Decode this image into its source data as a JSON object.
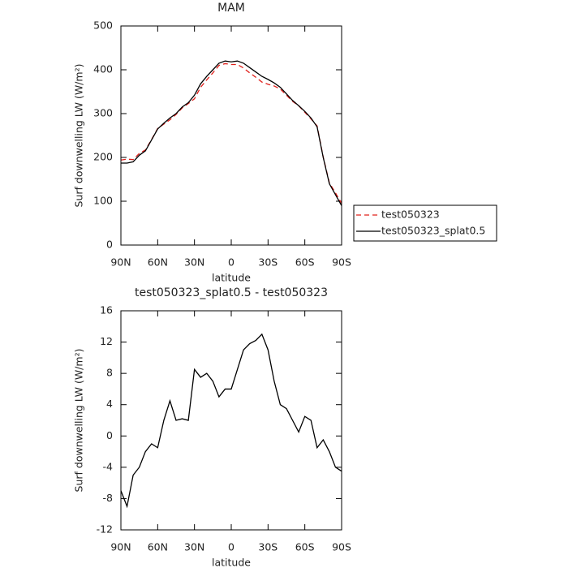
{
  "chart_data": [
    {
      "type": "line",
      "title": "MAM",
      "xlabel": "latitude",
      "ylabel": "Surf downwelling LW (W/m²)",
      "x": [
        90,
        85,
        80,
        75,
        70,
        65,
        60,
        55,
        50,
        45,
        40,
        35,
        30,
        25,
        20,
        15,
        10,
        5,
        0,
        -5,
        -10,
        -15,
        -20,
        -25,
        -30,
        -35,
        -40,
        -45,
        -50,
        -55,
        -60,
        -65,
        -70,
        -75,
        -80,
        -85,
        -90
      ],
      "series": [
        {
          "name": "test050323",
          "color": "#e0201b",
          "linestyle": "dashed",
          "values": [
            194,
            196,
            195,
            209,
            217,
            241,
            266,
            276,
            286,
            298,
            313,
            323,
            334,
            360,
            377,
            393,
            410,
            414,
            412,
            412,
            404,
            393,
            383,
            372,
            367,
            363,
            356,
            342,
            328,
            318,
            303,
            288,
            272,
            201,
            142,
            119,
            95
          ]
        },
        {
          "name": "test050323_splat0.5",
          "color": "#000000",
          "linestyle": "solid",
          "values": [
            187,
            187,
            190,
            205,
            215,
            240,
            265,
            278,
            290,
            300,
            315,
            325,
            342,
            368,
            385,
            400,
            415,
            420,
            418,
            420,
            415,
            405,
            395,
            385,
            378,
            370,
            360,
            345,
            330,
            318,
            305,
            290,
            270,
            200,
            140,
            115,
            90
          ]
        }
      ],
      "xlim": [
        90,
        -90
      ],
      "ylim": [
        0,
        500
      ],
      "xticks": [
        {
          "value": 90,
          "label": "90N"
        },
        {
          "value": 60,
          "label": "60N"
        },
        {
          "value": 30,
          "label": "30N"
        },
        0,
        {
          "value": -30,
          "label": "30S"
        },
        {
          "value": -60,
          "label": "60S"
        },
        {
          "value": -90,
          "label": "90S"
        }
      ],
      "yticks": [
        0,
        100,
        200,
        300,
        400,
        500
      ],
      "legend": "right"
    },
    {
      "type": "line",
      "title": "test050323_splat0.5 - test050323",
      "xlabel": "latitude",
      "ylabel": "Surf downwelling LW (W/m²)",
      "x": [
        90,
        85,
        80,
        75,
        70,
        65,
        60,
        55,
        50,
        45,
        40,
        35,
        30,
        25,
        20,
        15,
        10,
        5,
        0,
        -5,
        -10,
        -15,
        -20,
        -25,
        -30,
        -35,
        -40,
        -45,
        -50,
        -55,
        -60,
        -65,
        -70,
        -75,
        -80,
        -85,
        -90
      ],
      "series": [
        {
          "color": "#000000",
          "linestyle": "solid",
          "values": [
            -7,
            -9,
            -5,
            -4,
            -2,
            -1,
            -1.5,
            2,
            4.5,
            2,
            2.2,
            2,
            8.5,
            7.5,
            8,
            7,
            5,
            6,
            6,
            8.5,
            11,
            11.8,
            12.2,
            13,
            11,
            7,
            4,
            3.5,
            2,
            0.5,
            2.5,
            2,
            -1.5,
            -0.5,
            -2,
            -4,
            -4.5
          ]
        }
      ],
      "xlim": [
        90,
        -90
      ],
      "ylim": [
        -12,
        16
      ],
      "xticks": [
        {
          "value": 90,
          "label": "90N"
        },
        {
          "value": 60,
          "label": "60N"
        },
        {
          "value": 30,
          "label": "30N"
        },
        0,
        {
          "value": -30,
          "label": "30S"
        },
        {
          "value": -60,
          "label": "60S"
        },
        {
          "value": -90,
          "label": "90S"
        }
      ],
      "yticks": [
        -12,
        -8,
        -4,
        0,
        4,
        8,
        12,
        16
      ]
    }
  ]
}
